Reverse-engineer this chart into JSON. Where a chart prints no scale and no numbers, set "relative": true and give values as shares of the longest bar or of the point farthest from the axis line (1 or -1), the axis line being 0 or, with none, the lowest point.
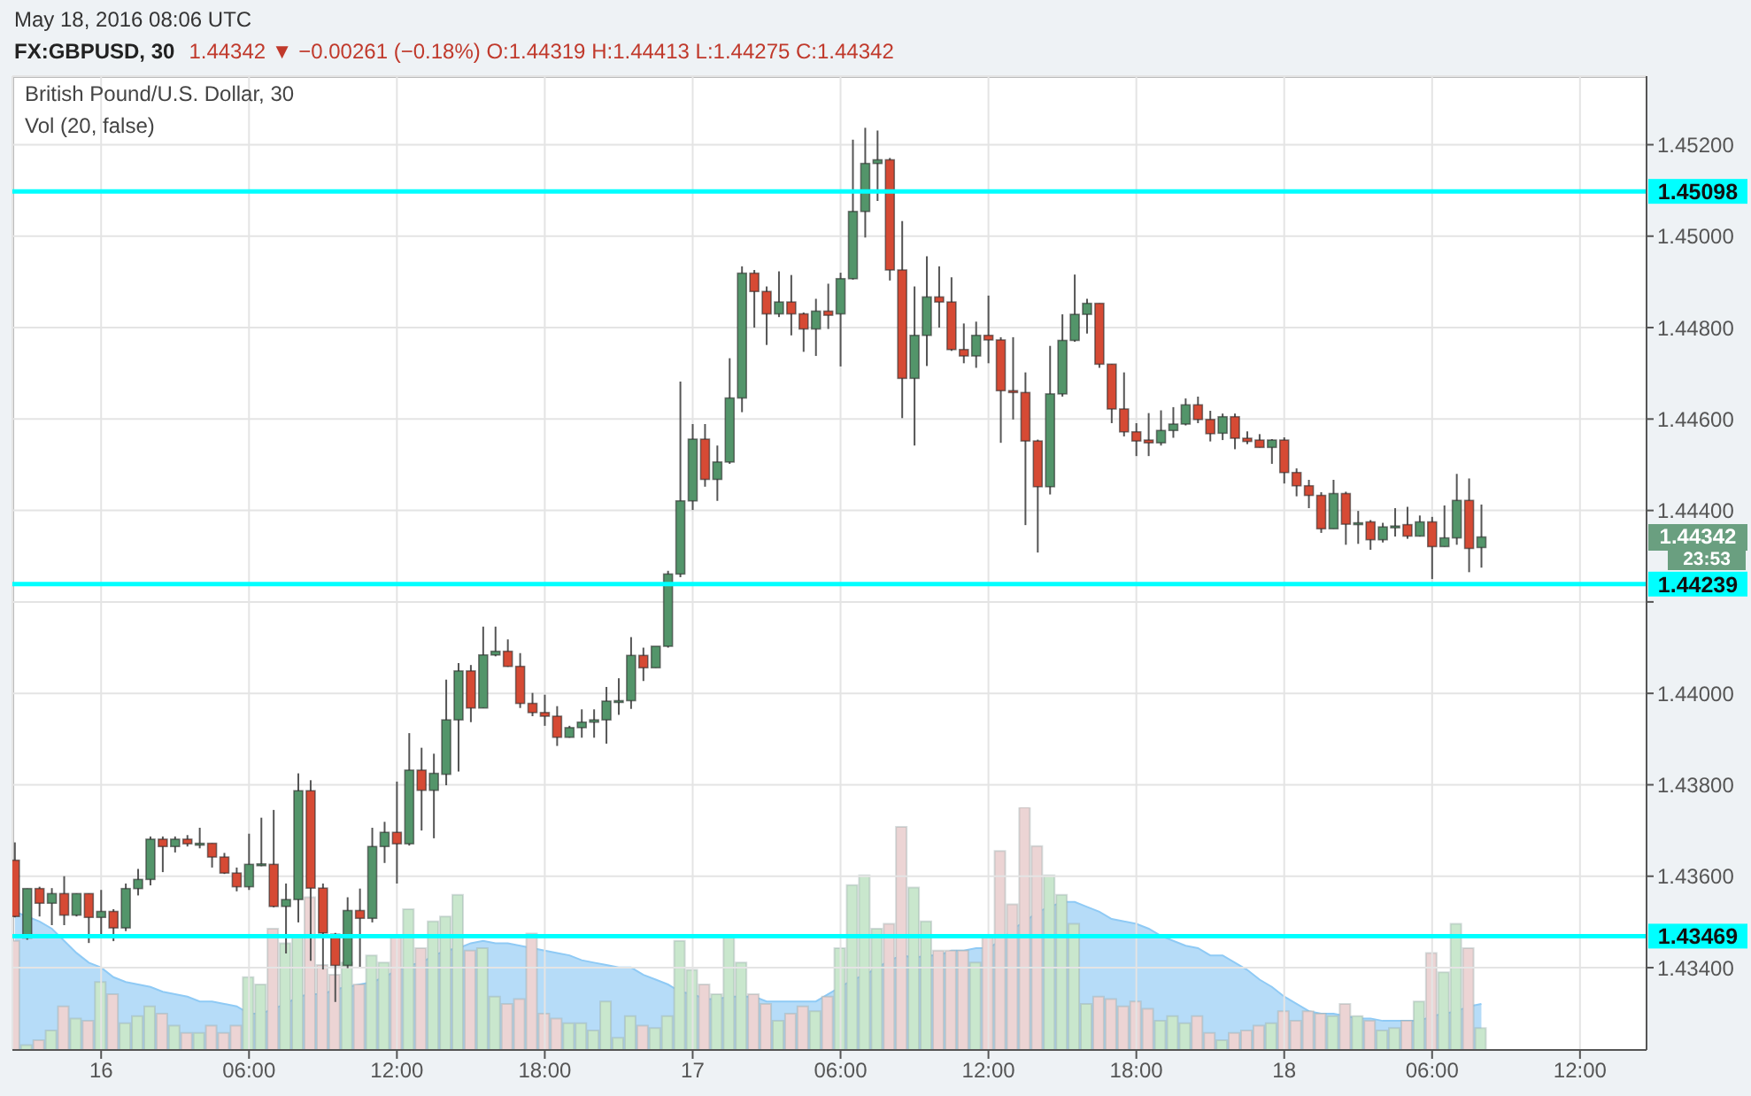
{
  "chart_data": [
    {
      "type": "candlestick",
      "title": "FX:GBPUSD, 30",
      "subtitle": "British Pound/U.S. Dollar, 30",
      "annotations": [
        "May 18, 2016 08:06 UTC",
        "1.44342 ▼ −0.00261 (−0.18%) O:1.44319 H:1.44413 L:1.44275 C:1.44342",
        "1.44342",
        "23:53"
      ],
      "x": [
        "2016-05-15T20:30",
        "2016-05-15T21:00",
        "2016-05-15T21:30",
        "2016-05-15T22:00",
        "2016-05-15T22:30",
        "2016-05-15T23:00",
        "2016-05-15T23:30",
        "2016-05-16T00:00",
        "2016-05-16T00:30",
        "2016-05-16T01:00",
        "2016-05-16T01:30",
        "2016-05-16T02:00",
        "2016-05-16T02:30",
        "2016-05-16T03:00",
        "2016-05-16T03:30",
        "2016-05-16T04:00",
        "2016-05-16T04:30",
        "2016-05-16T05:00",
        "2016-05-16T05:30",
        "2016-05-16T06:00",
        "2016-05-16T06:30",
        "2016-05-16T07:00",
        "2016-05-16T07:30",
        "2016-05-16T08:00",
        "2016-05-16T08:30",
        "2016-05-16T09:00",
        "2016-05-16T09:30",
        "2016-05-16T10:00",
        "2016-05-16T10:30",
        "2016-05-16T11:00",
        "2016-05-16T11:30",
        "2016-05-16T12:00",
        "2016-05-16T12:30",
        "2016-05-16T13:00",
        "2016-05-16T13:30",
        "2016-05-16T14:00",
        "2016-05-16T14:30",
        "2016-05-16T15:00",
        "2016-05-16T15:30",
        "2016-05-16T16:00",
        "2016-05-16T16:30",
        "2016-05-16T17:00",
        "2016-05-16T17:30",
        "2016-05-16T18:00",
        "2016-05-16T18:30",
        "2016-05-16T19:00",
        "2016-05-16T19:30",
        "2016-05-16T20:00",
        "2016-05-16T20:30",
        "2016-05-16T21:00",
        "2016-05-16T21:30",
        "2016-05-16T22:00",
        "2016-05-16T22:30",
        "2016-05-16T23:00",
        "2016-05-16T23:30",
        "2016-05-17T00:00",
        "2016-05-17T00:30",
        "2016-05-17T01:00",
        "2016-05-17T01:30",
        "2016-05-17T02:00",
        "2016-05-17T02:30",
        "2016-05-17T03:00",
        "2016-05-17T03:30",
        "2016-05-17T04:00",
        "2016-05-17T04:30",
        "2016-05-17T05:00",
        "2016-05-17T05:30",
        "2016-05-17T06:00",
        "2016-05-17T06:30",
        "2016-05-17T07:00",
        "2016-05-17T07:30",
        "2016-05-17T08:00",
        "2016-05-17T08:30",
        "2016-05-17T09:00",
        "2016-05-17T09:30",
        "2016-05-17T10:00",
        "2016-05-17T10:30",
        "2016-05-17T11:00",
        "2016-05-17T11:30",
        "2016-05-17T12:00",
        "2016-05-17T12:30",
        "2016-05-17T13:00",
        "2016-05-17T13:30",
        "2016-05-17T14:00",
        "2016-05-17T14:30",
        "2016-05-17T15:00",
        "2016-05-17T15:30",
        "2016-05-17T16:00",
        "2016-05-17T16:30",
        "2016-05-17T17:00",
        "2016-05-17T17:30",
        "2016-05-17T18:00",
        "2016-05-17T18:30",
        "2016-05-17T19:00",
        "2016-05-17T19:30",
        "2016-05-17T20:00",
        "2016-05-17T20:30",
        "2016-05-17T21:00",
        "2016-05-17T21:30",
        "2016-05-17T22:00",
        "2016-05-17T22:30",
        "2016-05-17T23:00",
        "2016-05-17T23:30",
        "2016-05-18T00:00",
        "2016-05-18T00:30",
        "2016-05-18T01:00",
        "2016-05-18T01:30",
        "2016-05-18T02:00",
        "2016-05-18T02:30",
        "2016-05-18T03:00",
        "2016-05-18T03:30",
        "2016-05-18T04:00",
        "2016-05-18T04:30",
        "2016-05-18T05:00",
        "2016-05-18T05:30",
        "2016-05-18T06:00",
        "2016-05-18T06:30",
        "2016-05-18T07:00",
        "2016-05-18T07:30",
        "2016-05-18T08:00"
      ],
      "ohlc": [
        [
          1.43635,
          1.43674,
          1.4351,
          1.43512
        ],
        [
          1.43465,
          1.43573,
          1.43461,
          1.43573
        ],
        [
          1.43573,
          1.43577,
          1.43512,
          1.43541
        ],
        [
          1.43541,
          1.43574,
          1.43493,
          1.43562
        ],
        [
          1.43562,
          1.436,
          1.43493,
          1.43515
        ],
        [
          1.43515,
          1.43562,
          1.43512,
          1.43562
        ],
        [
          1.43562,
          1.43562,
          1.43454,
          1.4351
        ],
        [
          1.4351,
          1.4357,
          1.43467,
          1.43523
        ],
        [
          1.43523,
          1.43528,
          1.43458,
          1.43487
        ],
        [
          1.43487,
          1.43584,
          1.4348,
          1.43573
        ],
        [
          1.43573,
          1.43616,
          1.43558,
          1.43593
        ],
        [
          1.43593,
          1.43687,
          1.4358,
          1.43681
        ],
        [
          1.43681,
          1.43687,
          1.43609,
          1.43665
        ],
        [
          1.43665,
          1.43687,
          1.43652,
          1.43681
        ],
        [
          1.43681,
          1.4369,
          1.43665,
          1.43671
        ],
        [
          1.43671,
          1.43706,
          1.43661,
          1.43672
        ],
        [
          1.43672,
          1.43672,
          1.43619,
          1.43642
        ],
        [
          1.43642,
          1.43651,
          1.43605,
          1.43607
        ],
        [
          1.43607,
          1.43619,
          1.43567,
          1.43577
        ],
        [
          1.43577,
          1.43693,
          1.4357,
          1.43626
        ],
        [
          1.43626,
          1.43728,
          1.43622,
          1.43627
        ],
        [
          1.43626,
          1.43745,
          1.43532,
          1.43534
        ],
        [
          1.43534,
          1.43584,
          1.43431,
          1.43549
        ],
        [
          1.43549,
          1.43825,
          1.43499,
          1.43787
        ],
        [
          1.43787,
          1.4381,
          1.43415,
          1.43574
        ],
        [
          1.43574,
          1.43584,
          1.43396,
          1.43476
        ],
        [
          1.43473,
          1.43476,
          1.43325,
          1.43405
        ],
        [
          1.43405,
          1.43554,
          1.43399,
          1.43525
        ],
        [
          1.43525,
          1.43573,
          1.43402,
          1.43508
        ],
        [
          1.43508,
          1.43706,
          1.43499,
          1.43665
        ],
        [
          1.43665,
          1.43719,
          1.43629,
          1.43696
        ],
        [
          1.43696,
          1.43807,
          1.43584,
          1.43671
        ],
        [
          1.43671,
          1.43913,
          1.43667,
          1.43832
        ],
        [
          1.43832,
          1.43881,
          1.437,
          1.43788
        ],
        [
          1.43788,
          1.43868,
          1.43683,
          1.43825
        ],
        [
          1.43823,
          1.4403,
          1.43799,
          1.43942
        ],
        [
          1.43942,
          1.44066,
          1.43829,
          1.44049
        ],
        [
          1.44049,
          1.44062,
          1.43937,
          1.43968
        ],
        [
          1.43968,
          1.44146,
          1.43968,
          1.44084
        ],
        [
          1.44084,
          1.44146,
          1.44081,
          1.44092
        ],
        [
          1.44092,
          1.44118,
          1.44058,
          1.44059
        ],
        [
          1.44059,
          1.44088,
          1.43968,
          1.43978
        ],
        [
          1.43978,
          1.44001,
          1.4395,
          1.43958
        ],
        [
          1.43958,
          1.43997,
          1.43929,
          1.4395
        ],
        [
          1.4395,
          1.43972,
          1.43885,
          1.43904
        ],
        [
          1.43904,
          1.43929,
          1.43903,
          1.43925
        ],
        [
          1.43925,
          1.43965,
          1.43903,
          1.43937
        ],
        [
          1.43937,
          1.43965,
          1.43903,
          1.43942
        ],
        [
          1.43942,
          1.44014,
          1.4389,
          1.43983
        ],
        [
          1.43983,
          1.44033,
          1.43953,
          1.43984
        ],
        [
          1.43984,
          1.44123,
          1.43966,
          1.44083
        ],
        [
          1.44083,
          1.441,
          1.44027,
          1.44056
        ],
        [
          1.44056,
          1.44103,
          1.44056,
          1.44103
        ],
        [
          1.44103,
          1.44268,
          1.441,
          1.44261
        ],
        [
          1.44261,
          1.44682,
          1.44254,
          1.44421
        ],
        [
          1.44421,
          1.44589,
          1.44401,
          1.44556
        ],
        [
          1.44556,
          1.44589,
          1.44452,
          1.44468
        ],
        [
          1.44468,
          1.44542,
          1.44421,
          1.44506
        ],
        [
          1.44506,
          1.44733,
          1.44502,
          1.44646
        ],
        [
          1.44646,
          1.44934,
          1.44615,
          1.44919
        ],
        [
          1.44919,
          1.44926,
          1.448,
          1.44879
        ],
        [
          1.44879,
          1.4489,
          1.44762,
          1.4483
        ],
        [
          1.4483,
          1.44923,
          1.44823,
          1.44856
        ],
        [
          1.44856,
          1.44915,
          1.44783,
          1.4483
        ],
        [
          1.4483,
          1.44833,
          1.44747,
          1.44797
        ],
        [
          1.44797,
          1.44863,
          1.44738,
          1.44836
        ],
        [
          1.44836,
          1.44896,
          1.44797,
          1.44827
        ],
        [
          1.4483,
          1.4492,
          1.44715,
          1.44907
        ],
        [
          1.44907,
          1.45211,
          1.44905,
          1.45054
        ],
        [
          1.45054,
          1.45237,
          1.44997,
          1.45159
        ],
        [
          1.45159,
          1.45231,
          1.45077,
          1.45167
        ],
        [
          1.45167,
          1.45171,
          1.44903,
          1.44926
        ],
        [
          1.44926,
          1.45033,
          1.44602,
          1.44689
        ],
        [
          1.44689,
          1.4489,
          1.44542,
          1.44783
        ],
        [
          1.44783,
          1.44956,
          1.44716,
          1.44867
        ],
        [
          1.44867,
          1.44934,
          1.448,
          1.44856
        ],
        [
          1.44856,
          1.4491,
          1.44749,
          1.44752
        ],
        [
          1.44752,
          1.44809,
          1.44722,
          1.44738
        ],
        [
          1.44738,
          1.44813,
          1.44712,
          1.44783
        ],
        [
          1.44783,
          1.4487,
          1.44722,
          1.44773
        ],
        [
          1.44773,
          1.44779,
          1.44548,
          1.44662
        ],
        [
          1.44662,
          1.44779,
          1.44599,
          1.44658
        ],
        [
          1.44658,
          1.44702,
          1.44368,
          1.44552
        ],
        [
          1.44552,
          1.44555,
          1.44308,
          1.44452
        ],
        [
          1.44452,
          1.4476,
          1.44435,
          1.44655
        ],
        [
          1.44655,
          1.44829,
          1.44649,
          1.44772
        ],
        [
          1.44772,
          1.44916,
          1.44769,
          1.44829
        ],
        [
          1.44829,
          1.44863,
          1.44787,
          1.44853
        ],
        [
          1.44853,
          1.44853,
          1.44712,
          1.4472
        ],
        [
          1.4472,
          1.4472,
          1.44591,
          1.44622
        ],
        [
          1.44622,
          1.44702,
          1.44562,
          1.44572
        ],
        [
          1.44572,
          1.44591,
          1.44519,
          1.44552
        ],
        [
          1.44554,
          1.44613,
          1.44519,
          1.44548
        ],
        [
          1.44548,
          1.44619,
          1.44542,
          1.44575
        ],
        [
          1.44575,
          1.44626,
          1.44559,
          1.44589
        ],
        [
          1.44589,
          1.44645,
          1.44586,
          1.44631
        ],
        [
          1.44631,
          1.44649,
          1.44591,
          1.44599
        ],
        [
          1.44599,
          1.44618,
          1.44551,
          1.44568
        ],
        [
          1.44569,
          1.44612,
          1.44554,
          1.44605
        ],
        [
          1.44605,
          1.44612,
          1.44534,
          1.44558
        ],
        [
          1.44558,
          1.44573,
          1.44545,
          1.44551
        ],
        [
          1.44554,
          1.44567,
          1.44538,
          1.44538
        ],
        [
          1.44538,
          1.44556,
          1.44502,
          1.44554
        ],
        [
          1.44554,
          1.4456,
          1.44459,
          1.44483
        ],
        [
          1.44483,
          1.44492,
          1.44431,
          1.44454
        ],
        [
          1.44454,
          1.44467,
          1.44405,
          1.44433
        ],
        [
          1.44433,
          1.4444,
          1.44351,
          1.4436
        ],
        [
          1.4436,
          1.44467,
          1.4436,
          1.44437
        ],
        [
          1.44437,
          1.44441,
          1.44325,
          1.4437
        ],
        [
          1.4437,
          1.44399,
          1.44327,
          1.44373
        ],
        [
          1.44375,
          1.44379,
          1.44314,
          1.44336
        ],
        [
          1.44336,
          1.44373,
          1.4433,
          1.44364
        ],
        [
          1.44364,
          1.44405,
          1.44343,
          1.44366
        ],
        [
          1.44369,
          1.44408,
          1.44338,
          1.44344
        ],
        [
          1.44344,
          1.44389,
          1.44343,
          1.44375
        ],
        [
          1.44375,
          1.44386,
          1.4425,
          1.44321
        ],
        [
          1.44321,
          1.44411,
          1.44321,
          1.4434
        ],
        [
          1.4434,
          1.4448,
          1.44325,
          1.44422
        ],
        [
          1.44422,
          1.4447,
          1.44265,
          1.44317
        ],
        [
          1.44319,
          1.44413,
          1.44275,
          1.44342
        ]
      ],
      "colors": [
        "#d64a34",
        "#53956a",
        "#d64a34",
        "#53956a",
        "#d64a34",
        "#53956a",
        "#d64a34",
        "#53956a",
        "#d64a34",
        "#53956a",
        "#53956a",
        "#53956a",
        "#d64a34",
        "#53956a",
        "#d64a34",
        "#53956a",
        "#d64a34",
        "#d64a34",
        "#d64a34",
        "#53956a",
        "#53956a",
        "#d64a34",
        "#53956a",
        "#53956a",
        "#d64a34",
        "#d64a34",
        "#d64a34",
        "#53956a",
        "#d64a34",
        "#53956a",
        "#53956a",
        "#d64a34",
        "#53956a",
        "#d64a34",
        "#53956a",
        "#53956a",
        "#53956a",
        "#d64a34",
        "#53956a",
        "#53956a",
        "#d64a34",
        "#d64a34",
        "#d64a34",
        "#d64a34",
        "#d64a34",
        "#53956a",
        "#53956a",
        "#53956a",
        "#53956a",
        "#53956a",
        "#53956a",
        "#d64a34",
        "#53956a",
        "#53956a",
        "#53956a",
        "#53956a",
        "#d64a34",
        "#53956a",
        "#53956a",
        "#53956a",
        "#d64a34",
        "#d64a34",
        "#53956a",
        "#d64a34",
        "#d64a34",
        "#53956a",
        "#d64a34",
        "#53956a",
        "#53956a",
        "#53956a",
        "#53956a",
        "#d64a34",
        "#d64a34",
        "#53956a",
        "#53956a",
        "#d64a34",
        "#d64a34",
        "#d64a34",
        "#53956a",
        "#d64a34",
        "#d64a34",
        "#d64a34",
        "#d64a34",
        "#d64a34",
        "#53956a",
        "#53956a",
        "#53956a",
        "#53956a",
        "#d64a34",
        "#d64a34",
        "#d64a34",
        "#d64a34",
        "#d64a34",
        "#53956a",
        "#53956a",
        "#53956a",
        "#d64a34",
        "#d64a34",
        "#53956a",
        "#d64a34",
        "#d64a34",
        "#d64a34",
        "#53956a",
        "#d64a34",
        "#d64a34",
        "#d64a34",
        "#d64a34",
        "#53956a",
        "#d64a34",
        "#53956a",
        "#d64a34",
        "#53956a",
        "#53956a",
        "#d64a34",
        "#53956a",
        "#d64a34",
        "#53956a",
        "#53956a",
        "#d64a34",
        "#53956a"
      ],
      "xlim": [
        "2016-05-15T20:24",
        "2016-05-18T14:42"
      ],
      "xticks": [
        {
          "value": "2016-05-16T00:00",
          "label": "16"
        },
        {
          "value": "2016-05-16T06:00",
          "label": "06:00"
        },
        {
          "value": "2016-05-16T12:00",
          "label": "12:00"
        },
        {
          "value": "2016-05-16T18:00",
          "label": "18:00"
        },
        {
          "value": "2016-05-17T00:00",
          "label": "17"
        },
        {
          "value": "2016-05-17T06:00",
          "label": "06:00"
        },
        {
          "value": "2016-05-17T12:00",
          "label": "12:00"
        },
        {
          "value": "2016-05-17T18:00",
          "label": "18:00"
        },
        {
          "value": "2016-05-18T00:00",
          "label": "18"
        },
        {
          "value": "2016-05-18T06:00",
          "label": "06:00"
        },
        {
          "value": "2016-05-18T12:00",
          "label": "12:00"
        }
      ],
      "ylim": [
        1.4322,
        1.4535
      ],
      "yticks": [
        {
          "value": 1.434,
          "label": "1.43400"
        },
        {
          "value": 1.436,
          "label": "1.43600"
        },
        {
          "value": 1.438,
          "label": "1.43800"
        },
        {
          "value": 1.44,
          "label": "1.44000"
        },
        {
          "value": 1.442,
          "label": null
        },
        {
          "value": 1.444,
          "label": "1.44400"
        },
        {
          "value": 1.446,
          "label": "1.44600"
        },
        {
          "value": 1.448,
          "label": "1.44800"
        },
        {
          "value": 1.45,
          "label": "1.45000"
        },
        {
          "value": 1.452,
          "label": "1.45200"
        }
      ],
      "ref_lines": [
        {
          "axis": "y",
          "value": 1.45098,
          "label": "1.45098",
          "color": "#00ffff"
        },
        {
          "axis": "y",
          "value": 1.44239,
          "label": "1.44239",
          "color": "#00ffff"
        },
        {
          "axis": "y",
          "value": 1.43469,
          "label": "1.43469",
          "color": "#00ffff"
        }
      ],
      "grid": true
    },
    {
      "type": "bar",
      "title": "Vol (20, false)",
      "relative": true,
      "tick_labels": false,
      "xlim": [
        "2016-05-15T20:24",
        "2016-05-18T14:42"
      ],
      "x": [
        "2016-05-15T20:30",
        "2016-05-15T21:00",
        "2016-05-15T21:30",
        "2016-05-15T22:00",
        "2016-05-15T22:30",
        "2016-05-15T23:00",
        "2016-05-15T23:30",
        "2016-05-16T00:00",
        "2016-05-16T00:30",
        "2016-05-16T01:00",
        "2016-05-16T01:30",
        "2016-05-16T02:00",
        "2016-05-16T02:30",
        "2016-05-16T03:00",
        "2016-05-16T03:30",
        "2016-05-16T04:00",
        "2016-05-16T04:30",
        "2016-05-16T05:00",
        "2016-05-16T05:30",
        "2016-05-16T06:00",
        "2016-05-16T06:30",
        "2016-05-16T07:00",
        "2016-05-16T07:30",
        "2016-05-16T08:00",
        "2016-05-16T08:30",
        "2016-05-16T09:00",
        "2016-05-16T09:30",
        "2016-05-16T10:00",
        "2016-05-16T10:30",
        "2016-05-16T11:00",
        "2016-05-16T11:30",
        "2016-05-16T12:00",
        "2016-05-16T12:30",
        "2016-05-16T13:00",
        "2016-05-16T13:30",
        "2016-05-16T14:00",
        "2016-05-16T14:30",
        "2016-05-16T15:00",
        "2016-05-16T15:30",
        "2016-05-16T16:00",
        "2016-05-16T16:30",
        "2016-05-16T17:00",
        "2016-05-16T17:30",
        "2016-05-16T18:00",
        "2016-05-16T18:30",
        "2016-05-16T19:00",
        "2016-05-16T19:30",
        "2016-05-16T20:00",
        "2016-05-16T20:30",
        "2016-05-16T21:00",
        "2016-05-16T21:30",
        "2016-05-16T22:00",
        "2016-05-16T22:30",
        "2016-05-16T23:00",
        "2016-05-16T23:30",
        "2016-05-17T00:00",
        "2016-05-17T00:30",
        "2016-05-17T01:00",
        "2016-05-17T01:30",
        "2016-05-17T02:00",
        "2016-05-17T02:30",
        "2016-05-17T03:00",
        "2016-05-17T03:30",
        "2016-05-17T04:00",
        "2016-05-17T04:30",
        "2016-05-17T05:00",
        "2016-05-17T05:30",
        "2016-05-17T06:00",
        "2016-05-17T06:30",
        "2016-05-17T07:00",
        "2016-05-17T07:30",
        "2016-05-17T08:00",
        "2016-05-17T08:30",
        "2016-05-17T09:00",
        "2016-05-17T09:30",
        "2016-05-17T10:00",
        "2016-05-17T10:30",
        "2016-05-17T11:00",
        "2016-05-17T11:30",
        "2016-05-17T12:00",
        "2016-05-17T12:30",
        "2016-05-17T13:00",
        "2016-05-17T13:30",
        "2016-05-17T14:00",
        "2016-05-17T14:30",
        "2016-05-17T15:00",
        "2016-05-17T15:30",
        "2016-05-17T16:00",
        "2016-05-17T16:30",
        "2016-05-17T17:00",
        "2016-05-17T17:30",
        "2016-05-17T18:00",
        "2016-05-17T18:30",
        "2016-05-17T19:00",
        "2016-05-17T19:30",
        "2016-05-17T20:00",
        "2016-05-17T20:30",
        "2016-05-17T21:00",
        "2016-05-17T21:30",
        "2016-05-17T22:00",
        "2016-05-17T22:30",
        "2016-05-17T23:00",
        "2016-05-17T23:30",
        "2016-05-18T00:00",
        "2016-05-18T00:30",
        "2016-05-18T01:00",
        "2016-05-18T01:30",
        "2016-05-18T02:00",
        "2016-05-18T02:30",
        "2016-05-18T03:00",
        "2016-05-18T03:30",
        "2016-05-18T04:00",
        "2016-05-18T04:30",
        "2016-05-18T05:00",
        "2016-05-18T05:30",
        "2016-05-18T06:00",
        "2016-05-18T06:30",
        "2016-05-18T07:00",
        "2016-05-18T07:30",
        "2016-05-18T08:00"
      ],
      "series": [
        {
          "type": "bar",
          "values": [
            0.45,
            0.02,
            0.04,
            0.08,
            0.18,
            0.13,
            0.12,
            0.28,
            0.23,
            0.11,
            0.14,
            0.18,
            0.15,
            0.1,
            0.07,
            0.07,
            0.1,
            0.07,
            0.1,
            0.3,
            0.27,
            0.5,
            0.44,
            0.47,
            0.63,
            0.35,
            0.31,
            0.36,
            0.27,
            0.39,
            0.36,
            0.47,
            0.58,
            0.42,
            0.53,
            0.55,
            0.64,
            0.41,
            0.42,
            0.22,
            0.19,
            0.21,
            0.48,
            0.15,
            0.13,
            0.11,
            0.11,
            0.08,
            0.2,
            0.05,
            0.14,
            0.1,
            0.09,
            0.14,
            0.45,
            0.33,
            0.27,
            0.23,
            0.47,
            0.36,
            0.23,
            0.19,
            0.12,
            0.15,
            0.18,
            0.16,
            0.22,
            0.42,
            0.68,
            0.72,
            0.5,
            0.52,
            0.92,
            0.67,
            0.53,
            0.41,
            0.41,
            0.41,
            0.36,
            0.47,
            0.82,
            0.6,
            1,
            0.84,
            0.72,
            0.64,
            0.52,
            0.19,
            0.22,
            0.21,
            0.18,
            0.2,
            0.17,
            0.12,
            0.14,
            0.11,
            0.14,
            0.07,
            0.04,
            0.07,
            0.08,
            0.1,
            0.11,
            0.16,
            0.12,
            0.16,
            0.15,
            0.14,
            0.19,
            0.14,
            0.12,
            0.08,
            0.09,
            0.12,
            0.2,
            0.4,
            0.32,
            0.52,
            0.42,
            0.09
          ],
          "colors": [
            "#ecd4d4",
            "#c9e7cd",
            "#ecd4d4",
            "#c9e7cd",
            "#ecd4d4",
            "#c9e7cd",
            "#ecd4d4",
            "#c9e7cd",
            "#ecd4d4",
            "#c9e7cd",
            "#c9e7cd",
            "#c9e7cd",
            "#ecd4d4",
            "#c9e7cd",
            "#ecd4d4",
            "#c9e7cd",
            "#ecd4d4",
            "#ecd4d4",
            "#ecd4d4",
            "#c9e7cd",
            "#c9e7cd",
            "#ecd4d4",
            "#c9e7cd",
            "#c9e7cd",
            "#ecd4d4",
            "#ecd4d4",
            "#ecd4d4",
            "#c9e7cd",
            "#ecd4d4",
            "#c9e7cd",
            "#c9e7cd",
            "#ecd4d4",
            "#c9e7cd",
            "#ecd4d4",
            "#c9e7cd",
            "#c9e7cd",
            "#c9e7cd",
            "#ecd4d4",
            "#c9e7cd",
            "#c9e7cd",
            "#ecd4d4",
            "#ecd4d4",
            "#ecd4d4",
            "#ecd4d4",
            "#ecd4d4",
            "#c9e7cd",
            "#c9e7cd",
            "#c9e7cd",
            "#c9e7cd",
            "#c9e7cd",
            "#c9e7cd",
            "#ecd4d4",
            "#c9e7cd",
            "#c9e7cd",
            "#c9e7cd",
            "#c9e7cd",
            "#ecd4d4",
            "#c9e7cd",
            "#c9e7cd",
            "#c9e7cd",
            "#ecd4d4",
            "#ecd4d4",
            "#c9e7cd",
            "#ecd4d4",
            "#ecd4d4",
            "#c9e7cd",
            "#ecd4d4",
            "#c9e7cd",
            "#c9e7cd",
            "#c9e7cd",
            "#c9e7cd",
            "#ecd4d4",
            "#ecd4d4",
            "#c9e7cd",
            "#c9e7cd",
            "#ecd4d4",
            "#ecd4d4",
            "#ecd4d4",
            "#c9e7cd",
            "#ecd4d4",
            "#ecd4d4",
            "#ecd4d4",
            "#ecd4d4",
            "#ecd4d4",
            "#c9e7cd",
            "#c9e7cd",
            "#c9e7cd",
            "#c9e7cd",
            "#ecd4d4",
            "#ecd4d4",
            "#ecd4d4",
            "#ecd4d4",
            "#ecd4d4",
            "#c9e7cd",
            "#c9e7cd",
            "#c9e7cd",
            "#ecd4d4",
            "#ecd4d4",
            "#c9e7cd",
            "#ecd4d4",
            "#ecd4d4",
            "#ecd4d4",
            "#c9e7cd",
            "#ecd4d4",
            "#ecd4d4",
            "#ecd4d4",
            "#ecd4d4",
            "#c9e7cd",
            "#ecd4d4",
            "#c9e7cd",
            "#ecd4d4",
            "#c9e7cd",
            "#c9e7cd",
            "#ecd4d4",
            "#c9e7cd",
            "#ecd4d4",
            "#c9e7cd",
            "#c9e7cd",
            "#ecd4d4",
            "#c9e7cd"
          ]
        },
        {
          "type": "area",
          "color": "#8fcaf5",
          "values": [
            0.57,
            0.55,
            0.53,
            0.5,
            0.45,
            0.4,
            0.36,
            0.34,
            0.3,
            0.28,
            0.27,
            0.26,
            0.24,
            0.23,
            0.22,
            0.2,
            0.2,
            0.19,
            0.18,
            0.15,
            0.15,
            0.17,
            0.19,
            0.22,
            0.23,
            0.23,
            0.25,
            0.26,
            0.27,
            0.28,
            0.3,
            0.33,
            0.35,
            0.36,
            0.39,
            0.41,
            0.42,
            0.44,
            0.45,
            0.44,
            0.44,
            0.43,
            0.42,
            0.41,
            0.4,
            0.39,
            0.37,
            0.36,
            0.35,
            0.34,
            0.34,
            0.31,
            0.29,
            0.27,
            0.24,
            0.23,
            0.21,
            0.21,
            0.22,
            0.22,
            0.22,
            0.2,
            0.2,
            0.2,
            0.2,
            0.2,
            0.23,
            0.26,
            0.29,
            0.31,
            0.34,
            0.37,
            0.39,
            0.38,
            0.39,
            0.39,
            0.41,
            0.41,
            0.42,
            0.42,
            0.45,
            0.5,
            0.53,
            0.57,
            0.59,
            0.61,
            0.61,
            0.59,
            0.57,
            0.54,
            0.53,
            0.52,
            0.5,
            0.47,
            0.45,
            0.43,
            0.42,
            0.39,
            0.39,
            0.36,
            0.33,
            0.29,
            0.26,
            0.22,
            0.19,
            0.16,
            0.15,
            0.15,
            0.14,
            0.13,
            0.13,
            0.12,
            0.12,
            0.12,
            0.12,
            0.14,
            0.15,
            0.16,
            0.18,
            0.19
          ]
        }
      ]
    }
  ]
}
